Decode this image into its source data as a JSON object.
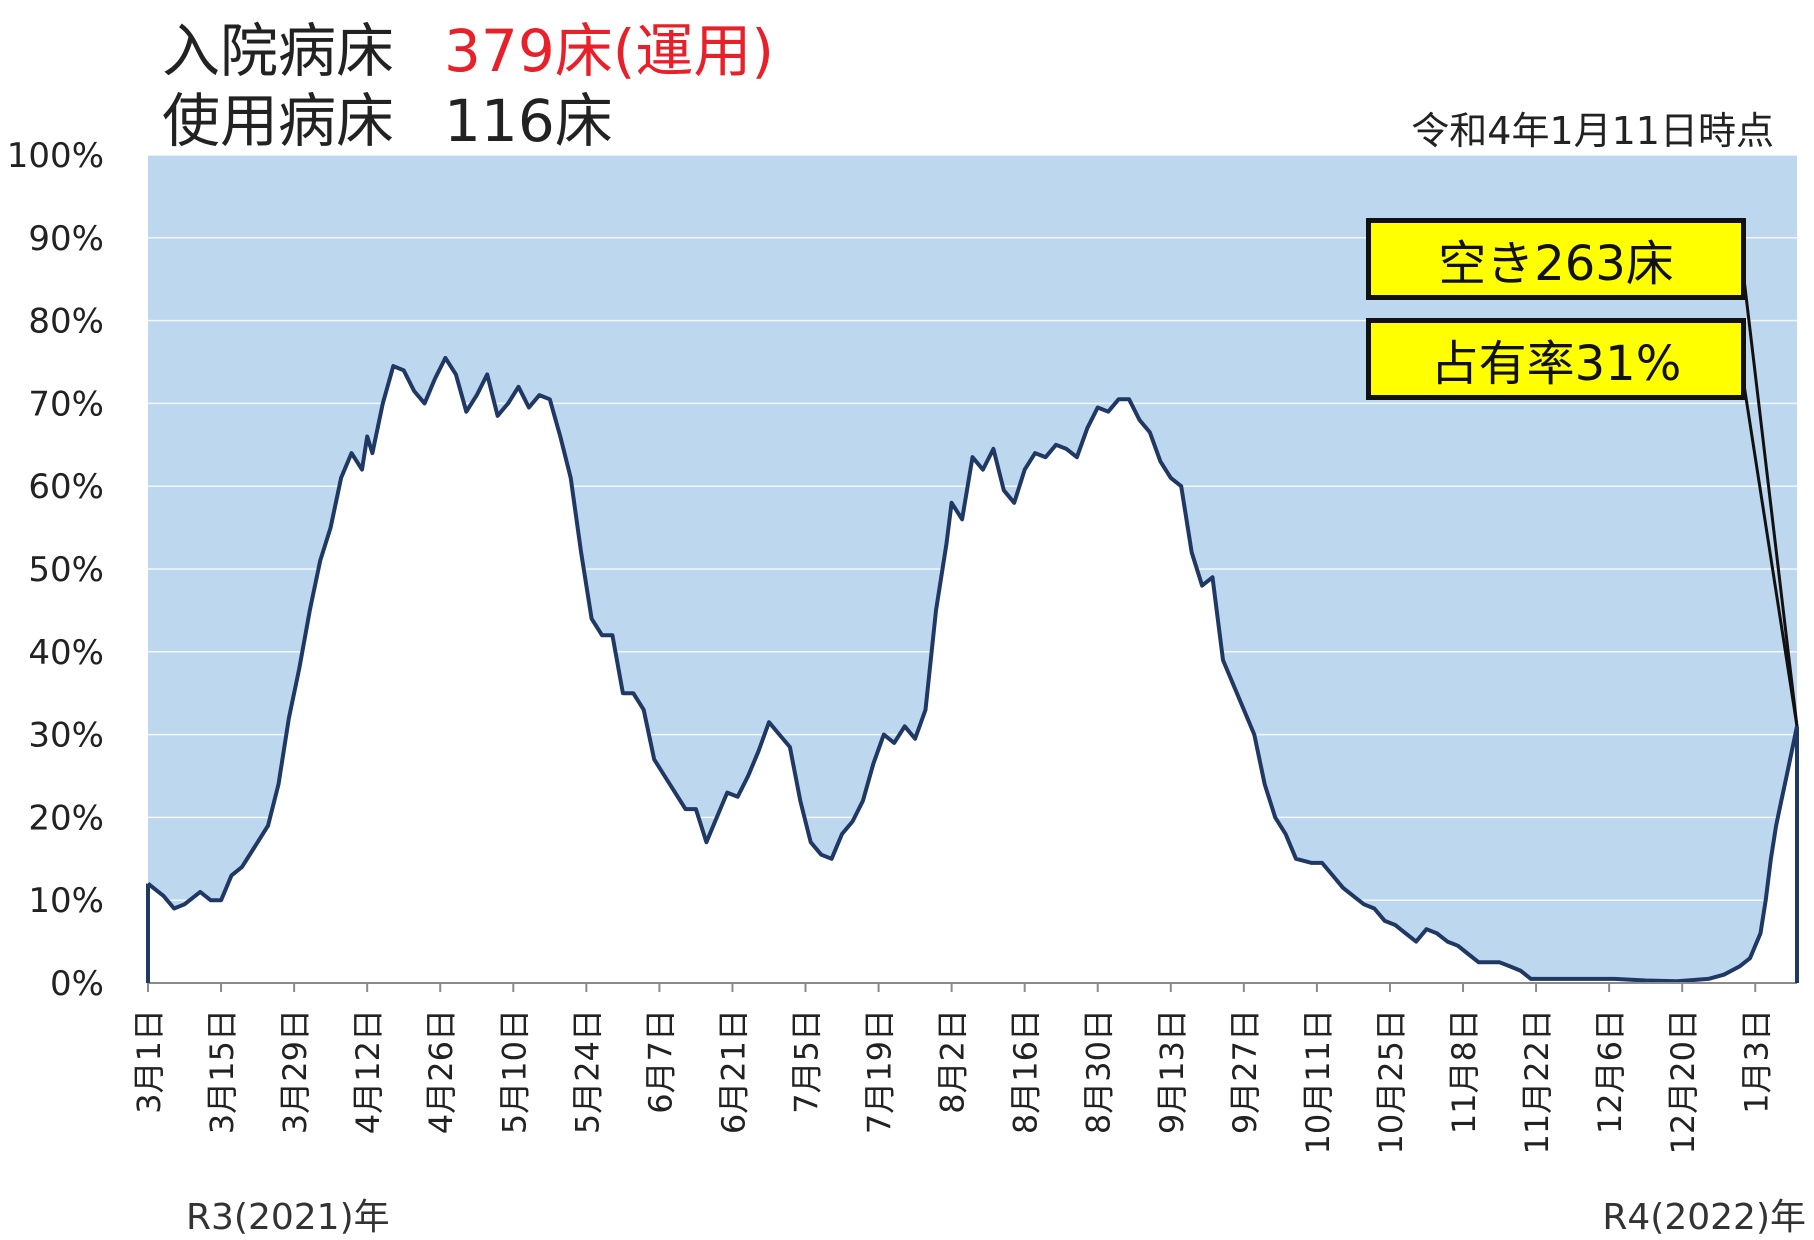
{
  "header": {
    "beds_operated_label": "入院病床",
    "beds_operated_value": "379床(運用)",
    "beds_used_label": "使用病床",
    "beds_used_value": "116床",
    "as_of": "令和4年1月11日時点"
  },
  "callouts": {
    "vacant": "空き263床",
    "occupancy": "占有率31%"
  },
  "era_labels": {
    "start": "R3(2021)年",
    "end": "R4(2022)年"
  },
  "colors": {
    "area_fill": "#bdd7ee",
    "line": "#1f3864",
    "callout_fill": "#ffff00",
    "highlight_text": "#e8202a"
  },
  "chart_data": {
    "type": "area",
    "ylim": [
      0,
      100
    ],
    "y_ticks": [
      "0%",
      "10%",
      "20%",
      "30%",
      "40%",
      "50%",
      "60%",
      "70%",
      "80%",
      "90%",
      "100%"
    ],
    "grid": true,
    "x_tick_labels": [
      "3月1日",
      "3月15日",
      "3月29日",
      "4月12日",
      "4月26日",
      "5月10日",
      "5月24日",
      "6月7日",
      "6月21日",
      "7月5日",
      "7月19日",
      "8月2日",
      "8月16日",
      "8月30日",
      "9月13日",
      "9月27日",
      "10月11日",
      "10月25日",
      "11月8日",
      "11月22日",
      "12月6日",
      "12月20日",
      "1月3日"
    ],
    "x_tick_dates": [
      "2021-03-01",
      "2021-03-15",
      "2021-03-29",
      "2021-04-12",
      "2021-04-26",
      "2021-05-10",
      "2021-05-24",
      "2021-06-07",
      "2021-06-21",
      "2021-07-05",
      "2021-07-19",
      "2021-08-02",
      "2021-08-16",
      "2021-08-30",
      "2021-09-13",
      "2021-09-27",
      "2021-10-11",
      "2021-10-25",
      "2021-11-08",
      "2021-11-22",
      "2021-12-06",
      "2021-12-20",
      "2022-01-03"
    ],
    "x_range": [
      "2021-03-01",
      "2022-01-11"
    ],
    "series": [
      {
        "values": [
          [
            "2021-03-01",
            12
          ],
          [
            "2021-03-04",
            10.5
          ],
          [
            "2021-03-06",
            9
          ],
          [
            "2021-03-08",
            9.5
          ],
          [
            "2021-03-11",
            11
          ],
          [
            "2021-03-13",
            10
          ],
          [
            "2021-03-15",
            10
          ],
          [
            "2021-03-17",
            13
          ],
          [
            "2021-03-19",
            14
          ],
          [
            "2021-03-21",
            16
          ],
          [
            "2021-03-24",
            19
          ],
          [
            "2021-03-26",
            24
          ],
          [
            "2021-03-28",
            32
          ],
          [
            "2021-03-30",
            38
          ],
          [
            "2021-04-01",
            45
          ],
          [
            "2021-04-03",
            51
          ],
          [
            "2021-04-05",
            55
          ],
          [
            "2021-04-07",
            61
          ],
          [
            "2021-04-09",
            64
          ],
          [
            "2021-04-11",
            62
          ],
          [
            "2021-04-12",
            66
          ],
          [
            "2021-04-13",
            64
          ],
          [
            "2021-04-15",
            70
          ],
          [
            "2021-04-17",
            74.5
          ],
          [
            "2021-04-19",
            74
          ],
          [
            "2021-04-21",
            71.5
          ],
          [
            "2021-04-23",
            70
          ],
          [
            "2021-04-25",
            73
          ],
          [
            "2021-04-27",
            75.5
          ],
          [
            "2021-04-29",
            73.5
          ],
          [
            "2021-05-01",
            69
          ],
          [
            "2021-05-03",
            71
          ],
          [
            "2021-05-05",
            73.5
          ],
          [
            "2021-05-07",
            68.5
          ],
          [
            "2021-05-09",
            70
          ],
          [
            "2021-05-11",
            72
          ],
          [
            "2021-05-13",
            69.5
          ],
          [
            "2021-05-15",
            71
          ],
          [
            "2021-05-17",
            70.5
          ],
          [
            "2021-05-19",
            66
          ],
          [
            "2021-05-21",
            61
          ],
          [
            "2021-05-23",
            52
          ],
          [
            "2021-05-25",
            44
          ],
          [
            "2021-05-27",
            42
          ],
          [
            "2021-05-29",
            42
          ],
          [
            "2021-05-31",
            35
          ],
          [
            "2021-06-02",
            35
          ],
          [
            "2021-06-04",
            33
          ],
          [
            "2021-06-06",
            27
          ],
          [
            "2021-06-08",
            25
          ],
          [
            "2021-06-10",
            23
          ],
          [
            "2021-06-12",
            21
          ],
          [
            "2021-06-14",
            21
          ],
          [
            "2021-06-16",
            17
          ],
          [
            "2021-06-18",
            20
          ],
          [
            "2021-06-20",
            23
          ],
          [
            "2021-06-22",
            22.5
          ],
          [
            "2021-06-24",
            25
          ],
          [
            "2021-06-26",
            28
          ],
          [
            "2021-06-28",
            31.5
          ],
          [
            "2021-06-30",
            30
          ],
          [
            "2021-07-02",
            28.5
          ],
          [
            "2021-07-04",
            22
          ],
          [
            "2021-07-06",
            17
          ],
          [
            "2021-07-08",
            15.5
          ],
          [
            "2021-07-10",
            15
          ],
          [
            "2021-07-12",
            18
          ],
          [
            "2021-07-14",
            19.5
          ],
          [
            "2021-07-16",
            22
          ],
          [
            "2021-07-18",
            26.5
          ],
          [
            "2021-07-20",
            30
          ],
          [
            "2021-07-22",
            29
          ],
          [
            "2021-07-24",
            31
          ],
          [
            "2021-07-26",
            29.5
          ],
          [
            "2021-07-28",
            33
          ],
          [
            "2021-07-30",
            45
          ],
          [
            "2021-08-01",
            53
          ],
          [
            "2021-08-02",
            58
          ],
          [
            "2021-08-04",
            56
          ],
          [
            "2021-08-06",
            63.5
          ],
          [
            "2021-08-08",
            62
          ],
          [
            "2021-08-10",
            64.5
          ],
          [
            "2021-08-12",
            59.5
          ],
          [
            "2021-08-14",
            58
          ],
          [
            "2021-08-16",
            62
          ],
          [
            "2021-08-18",
            64
          ],
          [
            "2021-08-20",
            63.5
          ],
          [
            "2021-08-22",
            65
          ],
          [
            "2021-08-24",
            64.5
          ],
          [
            "2021-08-26",
            63.5
          ],
          [
            "2021-08-28",
            67
          ],
          [
            "2021-08-30",
            69.5
          ],
          [
            "2021-09-01",
            69
          ],
          [
            "2021-09-03",
            70.5
          ],
          [
            "2021-09-05",
            70.5
          ],
          [
            "2021-09-07",
            68
          ],
          [
            "2021-09-09",
            66.5
          ],
          [
            "2021-09-11",
            63
          ],
          [
            "2021-09-13",
            61
          ],
          [
            "2021-09-15",
            60
          ],
          [
            "2021-09-17",
            52
          ],
          [
            "2021-09-19",
            48
          ],
          [
            "2021-09-21",
            49
          ],
          [
            "2021-09-23",
            39
          ],
          [
            "2021-09-25",
            36
          ],
          [
            "2021-09-27",
            33
          ],
          [
            "2021-09-29",
            30
          ],
          [
            "2021-10-01",
            24
          ],
          [
            "2021-10-03",
            20
          ],
          [
            "2021-10-05",
            18
          ],
          [
            "2021-10-07",
            15
          ],
          [
            "2021-10-10",
            14.5
          ],
          [
            "2021-10-12",
            14.5
          ],
          [
            "2021-10-14",
            13
          ],
          [
            "2021-10-16",
            11.5
          ],
          [
            "2021-10-18",
            10.5
          ],
          [
            "2021-10-20",
            9.5
          ],
          [
            "2021-10-22",
            9
          ],
          [
            "2021-10-24",
            7.5
          ],
          [
            "2021-10-26",
            7
          ],
          [
            "2021-10-28",
            6
          ],
          [
            "2021-10-30",
            5
          ],
          [
            "2021-11-01",
            6.5
          ],
          [
            "2021-11-03",
            6
          ],
          [
            "2021-11-05",
            5
          ],
          [
            "2021-11-07",
            4.5
          ],
          [
            "2021-11-09",
            3.5
          ],
          [
            "2021-11-11",
            2.5
          ],
          [
            "2021-11-13",
            2.5
          ],
          [
            "2021-11-15",
            2.5
          ],
          [
            "2021-11-17",
            2
          ],
          [
            "2021-11-19",
            1.5
          ],
          [
            "2021-11-21",
            0.5
          ],
          [
            "2021-11-25",
            0.5
          ],
          [
            "2021-12-01",
            0.5
          ],
          [
            "2021-12-07",
            0.5
          ],
          [
            "2021-12-13",
            0.3
          ],
          [
            "2021-12-19",
            0.2
          ],
          [
            "2021-12-25",
            0.5
          ],
          [
            "2021-12-28",
            1
          ],
          [
            "2021-12-31",
            2
          ],
          [
            "2022-01-02",
            3
          ],
          [
            "2022-01-04",
            6
          ],
          [
            "2022-01-05",
            10
          ],
          [
            "2022-01-06",
            15
          ],
          [
            "2022-01-07",
            19
          ],
          [
            "2022-01-08",
            22
          ],
          [
            "2022-01-09",
            25
          ],
          [
            "2022-01-10",
            28
          ],
          [
            "2022-01-11",
            31
          ]
        ]
      }
    ]
  }
}
